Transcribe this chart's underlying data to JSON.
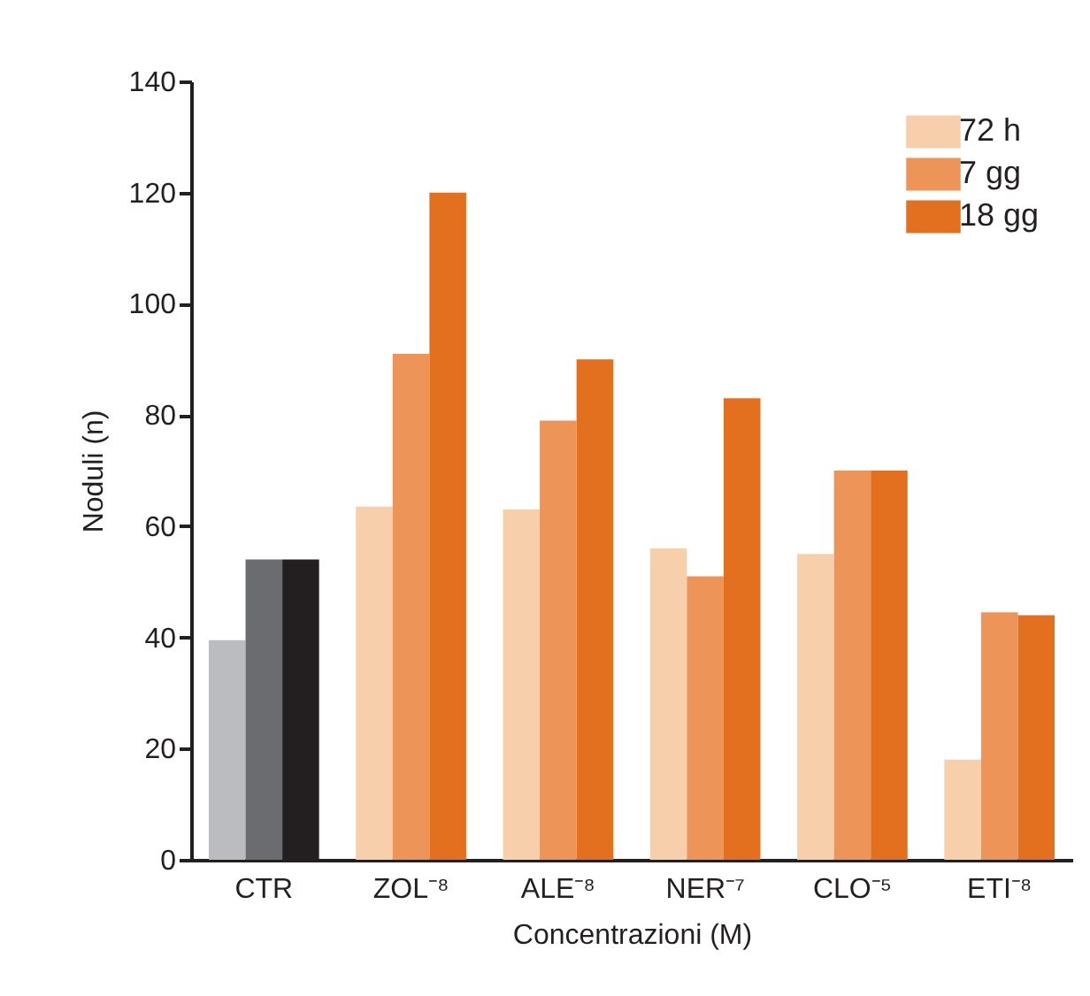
{
  "chart_data": {
    "type": "bar",
    "xlabel": "Concentrazioni (M)",
    "ylabel": "Noduli (n)",
    "categories": [
      "CTR",
      "ZOL⁻⁸",
      "ALE⁻⁸",
      "NER⁻⁷",
      "CLO⁻⁵",
      "ETI⁻⁸"
    ],
    "series": [
      {
        "name": "72 h",
        "color": "#f8cfab",
        "colors": [
          "#bbbcc0",
          "#f8cfab",
          "#f8cfab",
          "#f8cfab",
          "#f8cfab",
          "#f8cfab"
        ],
        "values": [
          39.5,
          63.5,
          63,
          56,
          55,
          18
        ]
      },
      {
        "name": "7 gg",
        "color": "#ed9459",
        "colors": [
          "#6b6c70",
          "#ed9459",
          "#ed9459",
          "#ed9459",
          "#ed9459",
          "#ed9459"
        ],
        "values": [
          54,
          91,
          79,
          51,
          70,
          44.5
        ]
      },
      {
        "name": "18 gg",
        "color": "#e3701f",
        "colors": [
          "#231f20",
          "#e3701f",
          "#e3701f",
          "#e3701f",
          "#e3701f",
          "#e3701f"
        ],
        "values": [
          54,
          120,
          90,
          83,
          70,
          44
        ]
      }
    ],
    "ylim": [
      0,
      140
    ],
    "yticks": [
      0,
      20,
      40,
      60,
      80,
      100,
      120,
      140
    ],
    "grid": false,
    "legend": "top right"
  }
}
